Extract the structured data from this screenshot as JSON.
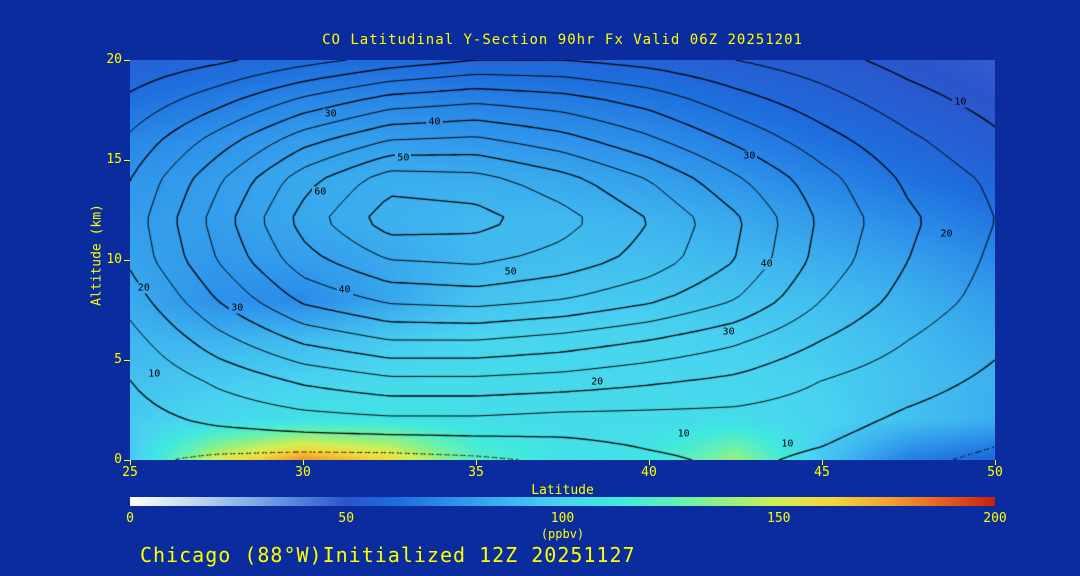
{
  "title": "CO Latitudinal Y-Section 90hr  Fx Valid 06Z 20251201",
  "footer": "Chicago (88°W)Initialized 12Z 20251127",
  "colors": {
    "background": "#0a2c9e",
    "text": "#ffff00",
    "contour_line": "#000000"
  },
  "axes": {
    "x_label": "Latitude",
    "y_label": "Altitude (km)",
    "x_min": 25,
    "x_max": 50,
    "y_min": 0,
    "y_max": 20,
    "x_ticks": [
      25,
      30,
      35,
      40,
      45,
      50
    ],
    "y_ticks": [
      0,
      5,
      10,
      15,
      20
    ]
  },
  "colorbar": {
    "label": "(ppbv)",
    "min": 0,
    "max": 200,
    "ticks": [
      0,
      50,
      100,
      150,
      200
    ]
  },
  "chart_data": {
    "type": "heatmap",
    "title": "CO Latitudinal Y-Section 90hr  Fx Valid 06Z 20251201",
    "xlabel": "Latitude",
    "ylabel": "Altitude (km)",
    "xlim": [
      25,
      50
    ],
    "ylim": [
      0,
      20
    ],
    "units": "ppbv",
    "x": [
      25,
      27.5,
      30,
      32.5,
      35,
      37.5,
      40,
      42.5,
      45,
      47.5,
      50
    ],
    "y": [
      0,
      2,
      4,
      6,
      8,
      10,
      12,
      14,
      16,
      18,
      20
    ],
    "fill_grid": [
      [
        95,
        152,
        180,
        162,
        122,
        108,
        110,
        140,
        95,
        68,
        58
      ],
      [
        96,
        102,
        108,
        110,
        106,
        104,
        104,
        105,
        100,
        92,
        85
      ],
      [
        92,
        96,
        99,
        103,
        104,
        103,
        102,
        101,
        98,
        92,
        86
      ],
      [
        88,
        87,
        90,
        96,
        101,
        101,
        100,
        98,
        95,
        90,
        83
      ],
      [
        84,
        74,
        72,
        82,
        93,
        96,
        96,
        94,
        91,
        86,
        79
      ],
      [
        81,
        77,
        79,
        83,
        89,
        91,
        91,
        89,
        85,
        80,
        72
      ],
      [
        79,
        79,
        83,
        86,
        89,
        89,
        87,
        83,
        78,
        72,
        65
      ],
      [
        76,
        79,
        83,
        85,
        85,
        83,
        80,
        76,
        70,
        64,
        58
      ],
      [
        71,
        75,
        79,
        79,
        77,
        75,
        73,
        68,
        63,
        58,
        53
      ],
      [
        63,
        67,
        71,
        71,
        69,
        67,
        65,
        61,
        57,
        53,
        50
      ],
      [
        56,
        59,
        61,
        61,
        59,
        58,
        57,
        54,
        52,
        50,
        48
      ]
    ],
    "contour_grid": [
      [
        6,
        4,
        3,
        3,
        4,
        6,
        9,
        11,
        9,
        6,
        4
      ],
      [
        8,
        11,
        13,
        14,
        14,
        13,
        13,
        13,
        12,
        9,
        7
      ],
      [
        10,
        16,
        21,
        24,
        24,
        23,
        21,
        19,
        15,
        12,
        9
      ],
      [
        13,
        23,
        31,
        35,
        35,
        33,
        30,
        26,
        20,
        15,
        11
      ],
      [
        17,
        30,
        41,
        46,
        47,
        45,
        41,
        35,
        25,
        18,
        13
      ],
      [
        21,
        35,
        48,
        55,
        56,
        53,
        48,
        40,
        28,
        20,
        14
      ],
      [
        22,
        37,
        52,
        63,
        62,
        57,
        50,
        41,
        29,
        21,
        15
      ],
      [
        20,
        34,
        48,
        58,
        57,
        52,
        45,
        36,
        27,
        19,
        14
      ],
      [
        16,
        27,
        38,
        45,
        46,
        42,
        36,
        29,
        22,
        16,
        11
      ],
      [
        11,
        18,
        26,
        32,
        34,
        32,
        28,
        22,
        17,
        12,
        8
      ],
      [
        6,
        9,
        13,
        17,
        20,
        20,
        18,
        15,
        12,
        8,
        5
      ]
    ],
    "contour_levels": [
      5,
      10,
      15,
      20,
      25,
      30,
      35,
      40,
      45,
      50,
      55,
      60
    ],
    "dotted_levels": [
      5
    ],
    "contour_labels": [
      {
        "text": "30",
        "lat": 30.8,
        "alt": 17.3
      },
      {
        "text": "40",
        "lat": 33.8,
        "alt": 16.9
      },
      {
        "text": "50",
        "lat": 32.9,
        "alt": 15.1
      },
      {
        "text": "60",
        "lat": 30.5,
        "alt": 13.4
      },
      {
        "text": "10",
        "lat": 49.0,
        "alt": 17.9
      },
      {
        "text": "30",
        "lat": 42.9,
        "alt": 15.2
      },
      {
        "text": "20",
        "lat": 48.6,
        "alt": 11.3
      },
      {
        "text": "50",
        "lat": 36.0,
        "alt": 9.4
      },
      {
        "text": "40",
        "lat": 31.2,
        "alt": 8.5
      },
      {
        "text": "40",
        "lat": 43.4,
        "alt": 9.8
      },
      {
        "text": "30",
        "lat": 28.1,
        "alt": 7.6
      },
      {
        "text": "20",
        "lat": 25.4,
        "alt": 8.6
      },
      {
        "text": "10",
        "lat": 25.7,
        "alt": 4.3
      },
      {
        "text": "30",
        "lat": 42.3,
        "alt": 6.4
      },
      {
        "text": "20",
        "lat": 38.5,
        "alt": 3.9
      },
      {
        "text": "10",
        "lat": 41.0,
        "alt": 1.3
      },
      {
        "text": "10",
        "lat": 44.0,
        "alt": 0.8
      }
    ],
    "colormap_stops": [
      [
        0,
        "#ffffff"
      ],
      [
        12,
        "#cfe0f4"
      ],
      [
        25,
        "#8fb8e8"
      ],
      [
        38,
        "#5588dd"
      ],
      [
        50,
        "#2b55cc"
      ],
      [
        62,
        "#1e6ede"
      ],
      [
        75,
        "#2e93ea"
      ],
      [
        88,
        "#3fb6ef"
      ],
      [
        100,
        "#49d4f0"
      ],
      [
        112,
        "#3fe8e0"
      ],
      [
        125,
        "#5ff0b8"
      ],
      [
        138,
        "#96f07e"
      ],
      [
        150,
        "#d4ee55"
      ],
      [
        162,
        "#f2d83a"
      ],
      [
        175,
        "#f2a52e"
      ],
      [
        188,
        "#e5601d"
      ],
      [
        200,
        "#cc1d10"
      ]
    ]
  }
}
